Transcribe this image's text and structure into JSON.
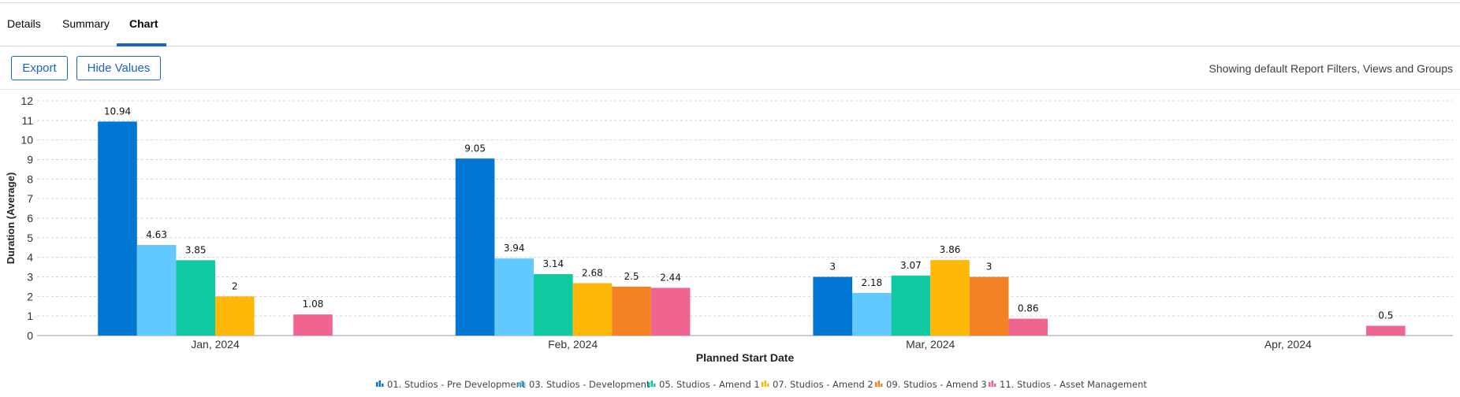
{
  "tabs": [
    {
      "label": "Details"
    },
    {
      "label": "Summary"
    },
    {
      "label": "Chart",
      "active": true
    }
  ],
  "toolbar": {
    "export_label": "Export",
    "hide_values_label": "Hide Values",
    "filters_text": "Showing default Report Filters, Views and Groups"
  },
  "chart_data": {
    "type": "bar",
    "xlabel": "Planned Start Date",
    "ylabel": "Duration (Average)",
    "ylim": [
      0,
      12
    ],
    "yticks": [
      0,
      1,
      2,
      3,
      4,
      5,
      6,
      7,
      8,
      9,
      10,
      11,
      12
    ],
    "grid": true,
    "legend_position": "bottom",
    "categories": [
      "Jan, 2024",
      "Feb, 2024",
      "Mar, 2024",
      "Apr, 2024"
    ],
    "series": [
      {
        "name": "01. Studios - Pre Development",
        "color": "#0176d3",
        "values": [
          10.94,
          9.05,
          3,
          null
        ]
      },
      {
        "name": "03. Studios - Development",
        "color": "#62c9ff",
        "values": [
          4.63,
          3.94,
          2.18,
          null
        ]
      },
      {
        "name": "05. Studios - Amend 1",
        "color": "#11c9a0",
        "values": [
          3.85,
          3.14,
          3.07,
          null
        ]
      },
      {
        "name": "07. Studios - Amend 2",
        "color": "#feb80a",
        "values": [
          2,
          2.68,
          3.86,
          null
        ]
      },
      {
        "name": "09. Studios - Amend 3",
        "color": "#f38222",
        "values": [
          null,
          2.5,
          3,
          null
        ]
      },
      {
        "name": "11. Studios - Asset Management",
        "color": "#ef6590",
        "values": [
          1.08,
          2.44,
          0.86,
          0.5
        ]
      }
    ]
  }
}
